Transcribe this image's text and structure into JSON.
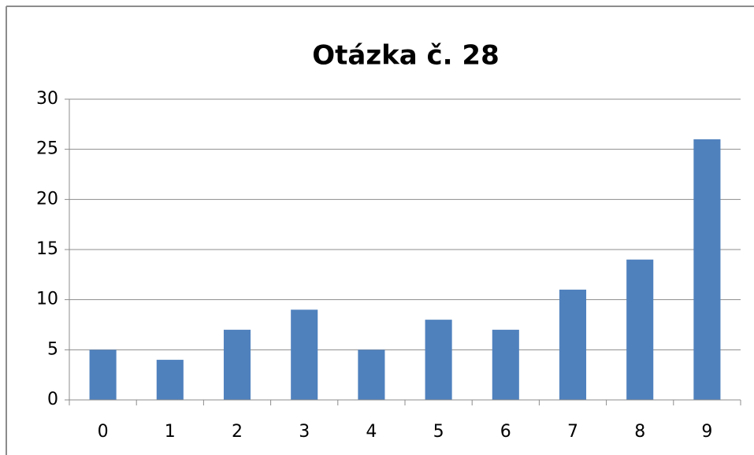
{
  "chart_data": {
    "type": "bar",
    "title": "Otázka č. 28",
    "categories": [
      "0",
      "1",
      "2",
      "3",
      "4",
      "5",
      "6",
      "7",
      "8",
      "9"
    ],
    "values": [
      5,
      4,
      7,
      9,
      5,
      8,
      7,
      11,
      14,
      26
    ],
    "color": "#4f81bd",
    "ylim": [
      0,
      30
    ],
    "yticks": [
      0,
      5,
      10,
      15,
      20,
      25,
      30
    ],
    "grid": true
  }
}
